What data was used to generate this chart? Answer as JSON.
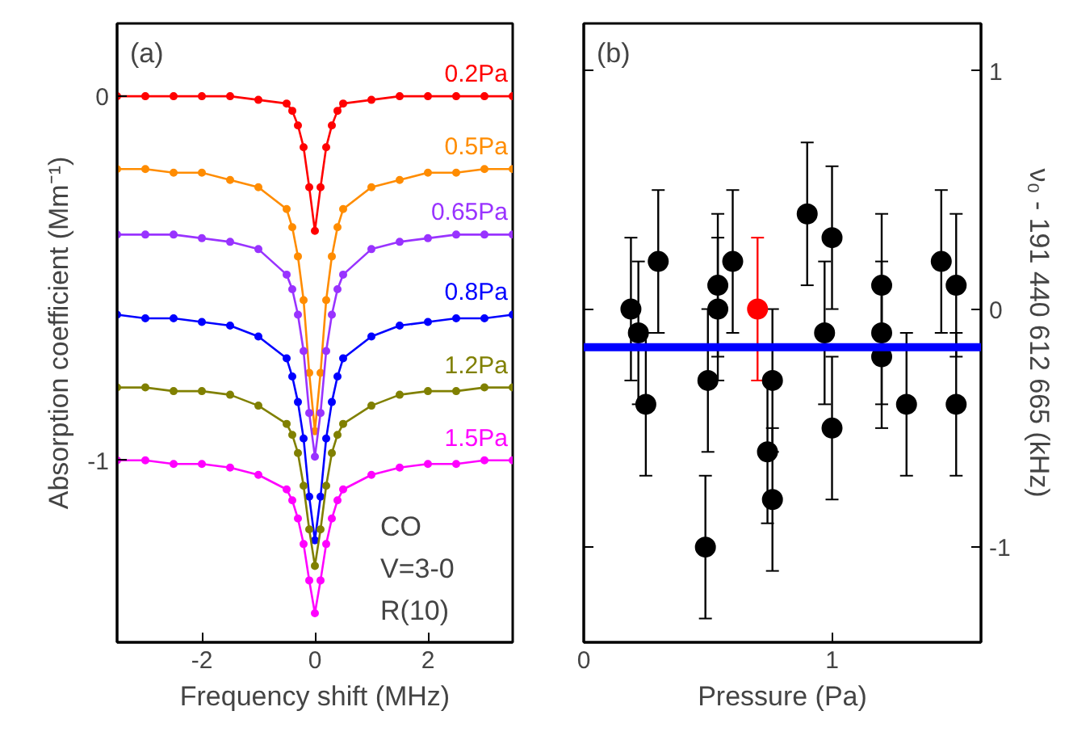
{
  "chart_data": [
    {
      "type": "line",
      "xlabel": "Frequency shift (MHz)",
      "ylabel": "Absorption coefficient (Mm⁻¹)",
      "marker": "circle",
      "line_style": "solid",
      "grid": false,
      "xlim": [
        -3.5,
        3.5
      ],
      "ylim": [
        -1.5,
        0.2
      ],
      "xticks": [
        -2,
        0,
        2
      ],
      "yticks": [
        -1,
        0
      ],
      "x": [
        -3.5,
        -3,
        -2.5,
        -2,
        -1.5,
        -1,
        -0.5,
        -0.4,
        -0.3,
        -0.2,
        -0.1,
        0,
        0.1,
        0.2,
        0.3,
        0.4,
        0.5,
        1,
        1.5,
        2,
        2.5,
        3,
        3.5
      ],
      "annotations": [
        "(a)",
        "CO",
        "V=3-0",
        "R(10)"
      ],
      "series": [
        {
          "name": "0.2Pa",
          "color": "#ff0000",
          "values": [
            0,
            0,
            0,
            0,
            0,
            -0.01,
            -0.02,
            -0.04,
            -0.08,
            -0.14,
            -0.25,
            -0.37,
            -0.25,
            -0.14,
            -0.08,
            -0.04,
            -0.02,
            -0.01,
            0,
            0,
            0,
            0,
            0
          ]
        },
        {
          "name": "0.5Pa",
          "color": "#ff8c00",
          "values": [
            -0.2,
            -0.2,
            -0.21,
            -0.21,
            -0.23,
            -0.25,
            -0.31,
            -0.36,
            -0.44,
            -0.56,
            -0.76,
            -0.92,
            -0.76,
            -0.56,
            -0.44,
            -0.36,
            -0.31,
            -0.25,
            -0.23,
            -0.21,
            -0.21,
            -0.2,
            -0.2
          ]
        },
        {
          "name": "0.65Pa",
          "color": "#9933ff",
          "values": [
            -0.38,
            -0.38,
            -0.38,
            -0.39,
            -0.4,
            -0.42,
            -0.49,
            -0.53,
            -0.6,
            -0.7,
            -0.87,
            -0.99,
            -0.87,
            -0.7,
            -0.6,
            -0.53,
            -0.49,
            -0.42,
            -0.4,
            -0.39,
            -0.38,
            -0.38,
            -0.38
          ]
        },
        {
          "name": "0.8Pa",
          "color": "#0000ff",
          "values": [
            -0.6,
            -0.61,
            -0.61,
            -0.62,
            -0.63,
            -0.66,
            -0.72,
            -0.77,
            -0.84,
            -0.94,
            -1.1,
            -1.22,
            -1.1,
            -0.94,
            -0.84,
            -0.77,
            -0.72,
            -0.66,
            -0.63,
            -0.62,
            -0.61,
            -0.61,
            -0.6
          ]
        },
        {
          "name": "1.2Pa",
          "color": "#808000",
          "values": [
            -0.8,
            -0.8,
            -0.81,
            -0.81,
            -0.82,
            -0.85,
            -0.9,
            -0.93,
            -0.98,
            -1.07,
            -1.19,
            -1.29,
            -1.19,
            -1.07,
            -0.98,
            -0.93,
            -0.9,
            -0.85,
            -0.82,
            -0.81,
            -0.81,
            -0.8,
            -0.8
          ]
        },
        {
          "name": "1.5Pa",
          "color": "#ff00ff",
          "values": [
            -1,
            -1,
            -1.01,
            -1.01,
            -1.02,
            -1.04,
            -1.08,
            -1.11,
            -1.16,
            -1.23,
            -1.33,
            -1.42,
            -1.33,
            -1.23,
            -1.16,
            -1.11,
            -1.08,
            -1.04,
            -1.02,
            -1.01,
            -1.01,
            -1,
            -1
          ]
        }
      ]
    },
    {
      "type": "scatter",
      "xlabel": "Pressure (Pa)",
      "ylabel": "ν₀ - 191 440 612 665 (kHz)",
      "marker": "circle",
      "grid": false,
      "xlim": [
        0,
        1.6
      ],
      "ylim": [
        -1.4,
        1.2
      ],
      "xticks": [
        0,
        1
      ],
      "yticks": [
        -1,
        0,
        1
      ],
      "annotations": [
        "(b)"
      ],
      "ref_lines": [
        {
          "axis": "y",
          "value": -0.16,
          "color": "#0000ff"
        }
      ],
      "series": [
        {
          "color": "#000000",
          "x": [
            0.19,
            0.22,
            0.25,
            0.3,
            0.49,
            0.5,
            0.54,
            0.54,
            0.6,
            0.74,
            0.76,
            0.76,
            0.9,
            0.97,
            1.0,
            1.0,
            1.2,
            1.2,
            1.2,
            1.3,
            1.44,
            1.5,
            1.5
          ],
          "values": [
            0,
            -0.1,
            -0.4,
            0.2,
            -1.0,
            -0.3,
            0.1,
            0,
            0.2,
            -0.6,
            -0.3,
            -0.8,
            0.4,
            -0.1,
            0.3,
            -0.5,
            0.1,
            -0.1,
            -0.2,
            -0.4,
            0.2,
            0.1,
            -0.4
          ],
          "errors": [
            0.3,
            0.3,
            0.3,
            0.3,
            0.3,
            0.3,
            0.3,
            0.3,
            0.3,
            0.3,
            0.3,
            0.3,
            0.3,
            0.3,
            0.3,
            0.3,
            0.3,
            0.3,
            0.3,
            0.3,
            0.3,
            0.3,
            0.3
          ]
        },
        {
          "color": "#ff0000",
          "x": [
            0.7
          ],
          "values": [
            0
          ],
          "errors": [
            0.3
          ]
        }
      ]
    }
  ]
}
